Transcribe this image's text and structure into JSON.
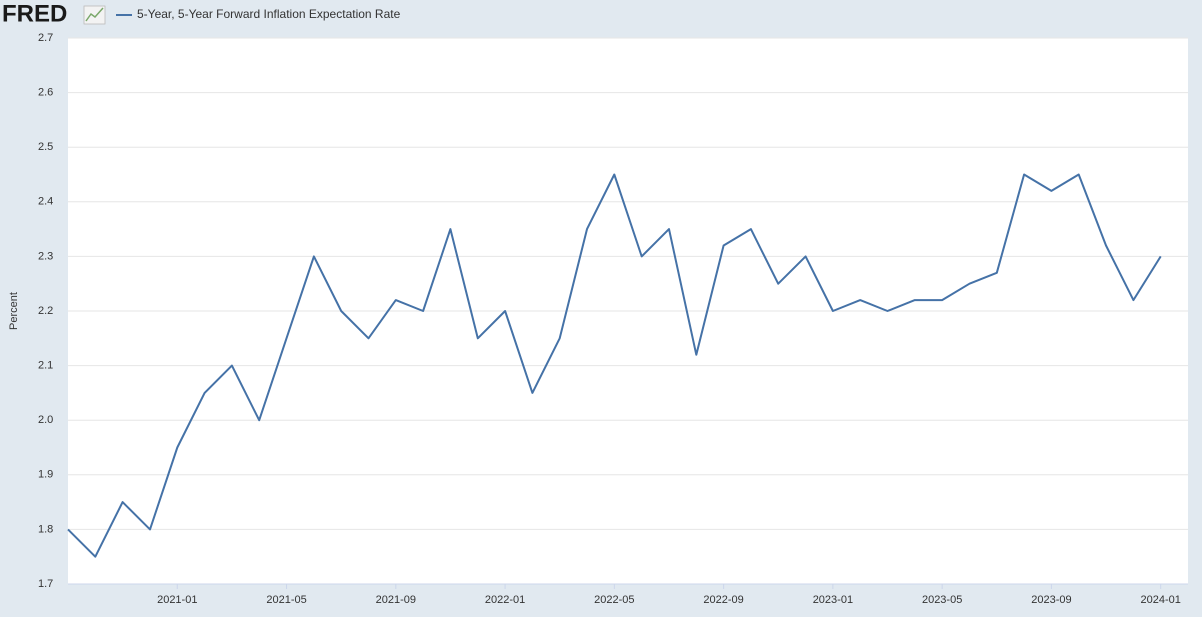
{
  "logo": "FRED",
  "chart_data": {
    "type": "line",
    "y_label": "Percent",
    "x": [
      "2020-09",
      "2020-10",
      "2020-11",
      "2020-12",
      "2021-01",
      "2021-02",
      "2021-03",
      "2021-04",
      "2021-05",
      "2021-06",
      "2021-07",
      "2021-08",
      "2021-09",
      "2021-10",
      "2021-11",
      "2021-12",
      "2022-01",
      "2022-02",
      "2022-03",
      "2022-04",
      "2022-05",
      "2022-06",
      "2022-07",
      "2022-08",
      "2022-09",
      "2022-10",
      "2022-11",
      "2022-12",
      "2023-01",
      "2023-02",
      "2023-03",
      "2023-04",
      "2023-05",
      "2023-06",
      "2023-07",
      "2023-08",
      "2023-09",
      "2023-10",
      "2023-11",
      "2023-12",
      "2024-01"
    ],
    "series": [
      {
        "name": "5-Year, 5-Year Forward Inflation Expectation Rate",
        "color": "#4572a7",
        "values": [
          1.8,
          1.75,
          1.85,
          1.8,
          1.95,
          2.05,
          2.1,
          2.0,
          2.15,
          2.3,
          2.2,
          2.15,
          2.22,
          2.2,
          2.35,
          2.15,
          2.2,
          2.05,
          2.15,
          2.35,
          2.45,
          2.3,
          2.35,
          2.12,
          2.32,
          2.35,
          2.25,
          2.3,
          2.2,
          2.22,
          2.2,
          2.22,
          2.22,
          2.25,
          2.27,
          2.45,
          2.42,
          2.45,
          2.32,
          2.22,
          2.3
        ]
      }
    ],
    "xlim": [
      "2020-09",
      "2024-02"
    ],
    "xticks": [
      "2021-01",
      "2021-05",
      "2021-09",
      "2022-01",
      "2022-05",
      "2022-09",
      "2023-01",
      "2023-05",
      "2023-09",
      "2024-01"
    ],
    "ylim": [
      1.7,
      2.7
    ],
    "yticks": [
      1.7,
      1.8,
      1.9,
      {
        "value": 2,
        "label": "2.0"
      },
      2.1,
      2.2,
      2.3,
      2.4,
      2.5,
      2.6,
      2.7
    ],
    "grid": true
  }
}
